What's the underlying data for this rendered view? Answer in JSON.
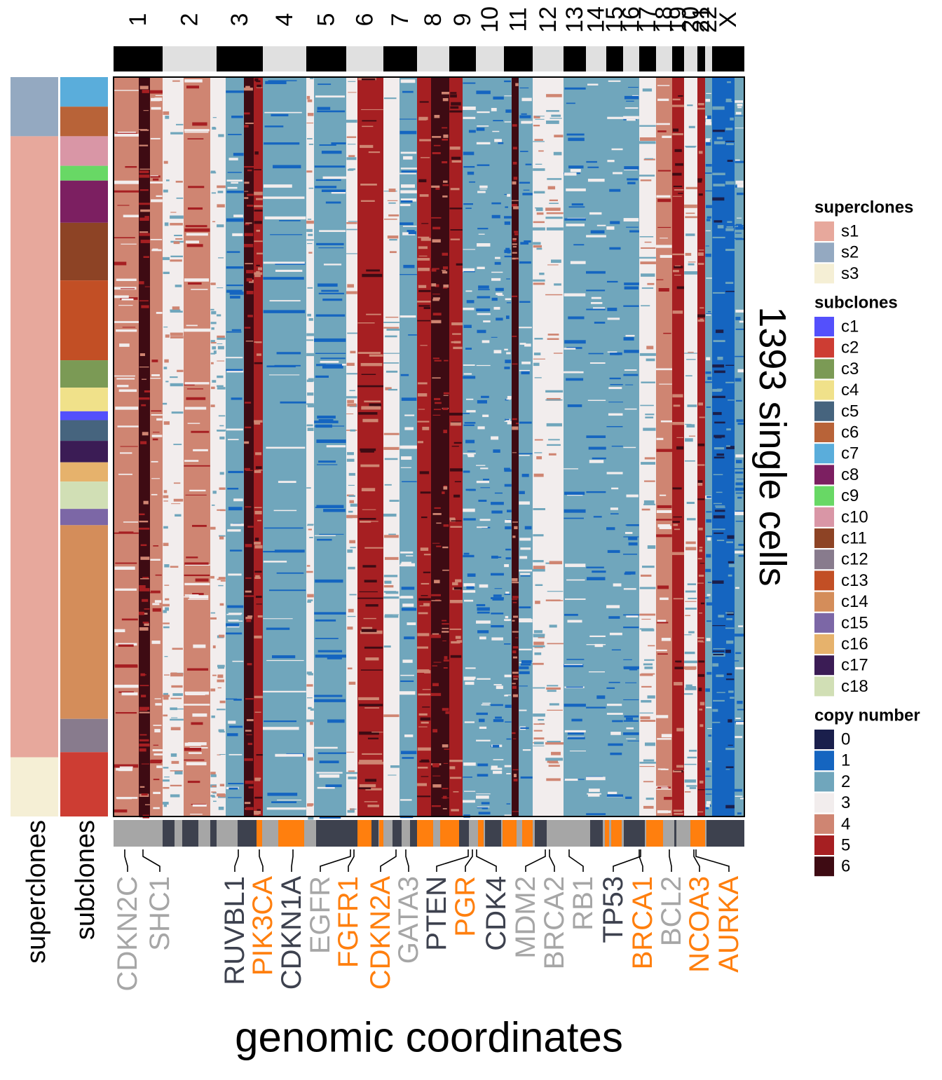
{
  "chart_data": {
    "type": "heatmap",
    "title": "",
    "xlabel": "genomic coordinates",
    "ylabel": "1393 single cells",
    "chromosomes": [
      "1",
      "2",
      "3",
      "4",
      "5",
      "6",
      "7",
      "8",
      "9",
      "10",
      "11",
      "12",
      "13",
      "14",
      "15",
      "16",
      "17",
      "18",
      "19",
      "20",
      "21",
      "22",
      "X"
    ],
    "row_annotation_labels": [
      "superclones",
      "subclones"
    ],
    "superclone_blocks": [
      {
        "name": "s2",
        "fraction": 0.08
      },
      {
        "name": "s1",
        "fraction": 0.84
      },
      {
        "name": "s3",
        "fraction": 0.08
      }
    ],
    "subclone_blocks": [
      {
        "name": "c7",
        "fraction": 0.04
      },
      {
        "name": "c6",
        "fraction": 0.04
      },
      {
        "name": "c10",
        "fraction": 0.04
      },
      {
        "name": "c9",
        "fraction": 0.02
      },
      {
        "name": "c8",
        "fraction": 0.057
      },
      {
        "name": "c11",
        "fraction": 0.078
      },
      {
        "name": "c13",
        "fraction": 0.108
      },
      {
        "name": "c3",
        "fraction": 0.037
      },
      {
        "name": "c4",
        "fraction": 0.032
      },
      {
        "name": "c1",
        "fraction": 0.012
      },
      {
        "name": "c5",
        "fraction": 0.028
      },
      {
        "name": "c17",
        "fraction": 0.029
      },
      {
        "name": "c16",
        "fraction": 0.026
      },
      {
        "name": "c18",
        "fraction": 0.037
      },
      {
        "name": "c15",
        "fraction": 0.022
      },
      {
        "name": "c14",
        "fraction": 0.262
      },
      {
        "name": "c12",
        "fraction": 0.045
      },
      {
        "name": "c2",
        "fraction": 0.087
      }
    ],
    "genes": [
      {
        "name": "CDKN2C",
        "color": "#a6a6a6"
      },
      {
        "name": "SHC1",
        "color": "#a6a6a6"
      },
      {
        "name": "RUVBL1",
        "color": "#3d414e"
      },
      {
        "name": "PIK3CA",
        "color": "#ff7f0e"
      },
      {
        "name": "CDKN1A",
        "color": "#3d414e"
      },
      {
        "name": "EGFR",
        "color": "#a6a6a6"
      },
      {
        "name": "FGFR1",
        "color": "#ff7f0e"
      },
      {
        "name": "CDKN2A",
        "color": "#ff7f0e"
      },
      {
        "name": "GATA3",
        "color": "#a6a6a6"
      },
      {
        "name": "PTEN",
        "color": "#3d414e"
      },
      {
        "name": "PGR",
        "color": "#ff7f0e"
      },
      {
        "name": "CDK4",
        "color": "#3d414e"
      },
      {
        "name": "MDM2",
        "color": "#a6a6a6"
      },
      {
        "name": "BRCA2",
        "color": "#a6a6a6"
      },
      {
        "name": "RB1",
        "color": "#a6a6a6"
      },
      {
        "name": "TP53",
        "color": "#3d414e"
      },
      {
        "name": "BRCA1",
        "color": "#ff7f0e"
      },
      {
        "name": "BCL2",
        "color": "#a6a6a6"
      },
      {
        "name": "NCOA3",
        "color": "#ff7f0e"
      },
      {
        "name": "AURKA",
        "color": "#ff7f0e"
      }
    ],
    "legends": {
      "superclones": {
        "title": "superclones",
        "items": [
          {
            "label": "s1",
            "color": "#e7a89c"
          },
          {
            "label": "s2",
            "color": "#94a9c1"
          },
          {
            "label": "s3",
            "color": "#f5efd5"
          }
        ]
      },
      "subclones": {
        "title": "subclones",
        "items": [
          {
            "label": "c1",
            "color": "#5450fc"
          },
          {
            "label": "c2",
            "color": "#cd3d33"
          },
          {
            "label": "c3",
            "color": "#7b9a55"
          },
          {
            "label": "c4",
            "color": "#f0e18a"
          },
          {
            "label": "c5",
            "color": "#46647e"
          },
          {
            "label": "c6",
            "color": "#b86338"
          },
          {
            "label": "c7",
            "color": "#5aaddb"
          },
          {
            "label": "c8",
            "color": "#7c1f61"
          },
          {
            "label": "c9",
            "color": "#68d865"
          },
          {
            "label": "c10",
            "color": "#d996a6"
          },
          {
            "label": "c11",
            "color": "#8d4325"
          },
          {
            "label": "c12",
            "color": "#887b8d"
          },
          {
            "label": "c13",
            "color": "#c24f25"
          },
          {
            "label": "c14",
            "color": "#d48d5a"
          },
          {
            "label": "c15",
            "color": "#7c67a6"
          },
          {
            "label": "c16",
            "color": "#e6b26c"
          },
          {
            "label": "c17",
            "color": "#3b1c55"
          },
          {
            "label": "c18",
            "color": "#d1dfb5"
          }
        ]
      },
      "copy_number": {
        "title": "copy number",
        "items": [
          {
            "label": "0",
            "color": "#1a1f4c"
          },
          {
            "label": "1",
            "color": "#1565c0"
          },
          {
            "label": "2",
            "color": "#70a6bc"
          },
          {
            "label": "3",
            "color": "#f2eded"
          },
          {
            "label": "4",
            "color": "#cf8572"
          },
          {
            "label": "5",
            "color": "#a61f22"
          },
          {
            "label": "6",
            "color": "#3e0b13"
          }
        ]
      }
    },
    "grid": false,
    "legend_position": "right"
  }
}
